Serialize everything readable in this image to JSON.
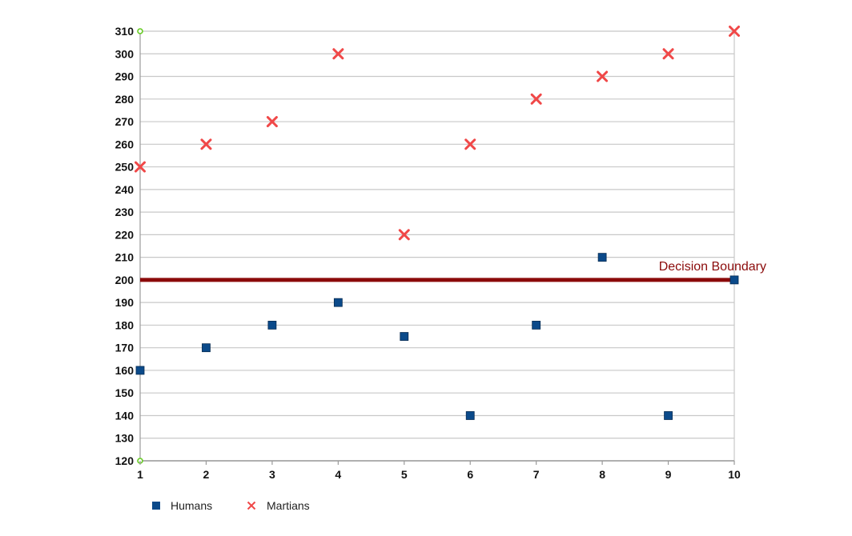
{
  "chart_data": {
    "type": "scatter",
    "title": "",
    "xlabel": "",
    "ylabel": "",
    "xlim": [
      1,
      10
    ],
    "ylim": [
      120,
      310
    ],
    "x_ticks": [
      1,
      2,
      3,
      4,
      5,
      6,
      7,
      8,
      9,
      10
    ],
    "y_ticks": [
      120,
      130,
      140,
      150,
      160,
      170,
      180,
      190,
      200,
      210,
      220,
      230,
      240,
      250,
      260,
      270,
      280,
      290,
      300,
      310
    ],
    "grid": "horizontal",
    "legend_position": "bottom-left",
    "series": [
      {
        "name": "Humans",
        "marker": "square",
        "color": "#0b4a8a",
        "points": [
          {
            "x": 1,
            "y": 160
          },
          {
            "x": 2,
            "y": 170
          },
          {
            "x": 3,
            "y": 180
          },
          {
            "x": 4,
            "y": 190
          },
          {
            "x": 5,
            "y": 175
          },
          {
            "x": 6,
            "y": 140
          },
          {
            "x": 7,
            "y": 180
          },
          {
            "x": 8,
            "y": 210
          },
          {
            "x": 9,
            "y": 140
          },
          {
            "x": 10,
            "y": 200
          }
        ]
      },
      {
        "name": "Martians",
        "marker": "cross",
        "color": "#f04848",
        "points": [
          {
            "x": 1,
            "y": 250
          },
          {
            "x": 2,
            "y": 260
          },
          {
            "x": 3,
            "y": 270
          },
          {
            "x": 4,
            "y": 300
          },
          {
            "x": 5,
            "y": 220
          },
          {
            "x": 6,
            "y": 260
          },
          {
            "x": 7,
            "y": 280
          },
          {
            "x": 8,
            "y": 290
          },
          {
            "x": 9,
            "y": 300
          },
          {
            "x": 10,
            "y": 310
          }
        ]
      }
    ],
    "decision_boundary": {
      "label": "Decision Boundary",
      "y": 200,
      "color": "#8b0a0a"
    }
  }
}
